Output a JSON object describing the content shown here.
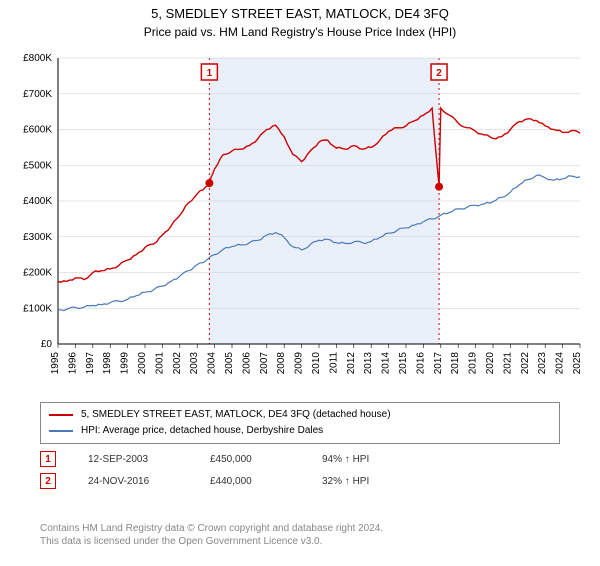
{
  "title": "5, SMEDLEY STREET EAST, MATLOCK, DE4 3FQ",
  "subtitle": "Price paid vs. HM Land Registry's House Price Index (HPI)",
  "chart": {
    "type": "line",
    "background_color": "#ffffff",
    "shaded_region_color": "#eaf0fa",
    "shaded_region_border_color": "#cc0000",
    "shaded_region_border_dash": "2,3",
    "grid_color": "#cccccc",
    "axis_color": "#000000",
    "x_years": [
      "1995",
      "1996",
      "1997",
      "1998",
      "1999",
      "2000",
      "2001",
      "2002",
      "2003",
      "2004",
      "2005",
      "2006",
      "2007",
      "2008",
      "2009",
      "2010",
      "2011",
      "2012",
      "2013",
      "2014",
      "2015",
      "2016",
      "2017",
      "2018",
      "2019",
      "2020",
      "2021",
      "2022",
      "2023",
      "2024",
      "2025"
    ],
    "ylim": [
      0,
      800000
    ],
    "ytick_step": 100000,
    "ytick_labels": [
      "£0",
      "£100K",
      "£200K",
      "£300K",
      "£400K",
      "£500K",
      "£600K",
      "£700K",
      "£800K"
    ],
    "shaded_x_start": 2003.7,
    "shaded_x_end": 2016.9,
    "series": [
      {
        "name": "price_paid",
        "color": "#cc0000",
        "width": 1.4,
        "points": [
          [
            1995,
            175000
          ],
          [
            1995.5,
            175000
          ],
          [
            1996,
            185000
          ],
          [
            1996.5,
            180000
          ],
          [
            1997,
            200000
          ],
          [
            1997.5,
            205000
          ],
          [
            1998,
            210000
          ],
          [
            1998.5,
            220000
          ],
          [
            1999,
            235000
          ],
          [
            1999.5,
            250000
          ],
          [
            2000,
            270000
          ],
          [
            2000.5,
            280000
          ],
          [
            2001,
            305000
          ],
          [
            2001.5,
            330000
          ],
          [
            2002,
            360000
          ],
          [
            2002.5,
            395000
          ],
          [
            2003,
            420000
          ],
          [
            2003.5,
            440000
          ],
          [
            2003.7,
            450000
          ],
          [
            2004,
            490000
          ],
          [
            2004.5,
            530000
          ],
          [
            2005,
            540000
          ],
          [
            2005.5,
            545000
          ],
          [
            2006,
            555000
          ],
          [
            2006.5,
            575000
          ],
          [
            2007,
            600000
          ],
          [
            2007.5,
            612000
          ],
          [
            2008,
            580000
          ],
          [
            2008.5,
            530000
          ],
          [
            2009,
            510000
          ],
          [
            2009.5,
            540000
          ],
          [
            2010,
            565000
          ],
          [
            2010.5,
            570000
          ],
          [
            2011,
            548000
          ],
          [
            2011.5,
            545000
          ],
          [
            2012,
            555000
          ],
          [
            2012.5,
            545000
          ],
          [
            2013,
            550000
          ],
          [
            2013.5,
            570000
          ],
          [
            2014,
            595000
          ],
          [
            2014.5,
            605000
          ],
          [
            2015,
            610000
          ],
          [
            2015.5,
            625000
          ],
          [
            2016,
            640000
          ],
          [
            2016.5,
            660000
          ],
          [
            2016.9,
            440000
          ],
          [
            2017,
            660000
          ],
          [
            2017.5,
            640000
          ],
          [
            2018,
            618000
          ],
          [
            2018.5,
            605000
          ],
          [
            2019,
            595000
          ],
          [
            2019.5,
            585000
          ],
          [
            2020,
            575000
          ],
          [
            2020.5,
            580000
          ],
          [
            2021,
            600000
          ],
          [
            2021.5,
            622000
          ],
          [
            2022,
            630000
          ],
          [
            2022.5,
            625000
          ],
          [
            2023,
            610000
          ],
          [
            2023.5,
            600000
          ],
          [
            2024,
            592000
          ],
          [
            2024.5,
            597000
          ],
          [
            2025,
            590000
          ]
        ]
      },
      {
        "name": "hpi",
        "color": "#4a7ab8",
        "width": 1.2,
        "points": [
          [
            1995,
            95000
          ],
          [
            1995.5,
            97000
          ],
          [
            1996,
            102000
          ],
          [
            1996.5,
            103000
          ],
          [
            1997,
            108000
          ],
          [
            1997.5,
            110000
          ],
          [
            1998,
            116000
          ],
          [
            1998.5,
            120000
          ],
          [
            1999,
            125000
          ],
          [
            1999.5,
            135000
          ],
          [
            2000,
            145000
          ],
          [
            2000.5,
            152000
          ],
          [
            2001,
            162000
          ],
          [
            2001.5,
            175000
          ],
          [
            2002,
            190000
          ],
          [
            2002.5,
            205000
          ],
          [
            2003,
            222000
          ],
          [
            2003.5,
            233000
          ],
          [
            2004,
            250000
          ],
          [
            2004.5,
            265000
          ],
          [
            2005,
            273000
          ],
          [
            2005.5,
            277000
          ],
          [
            2006,
            283000
          ],
          [
            2006.5,
            290000
          ],
          [
            2007,
            305000
          ],
          [
            2007.5,
            312000
          ],
          [
            2008,
            298000
          ],
          [
            2008.5,
            272000
          ],
          [
            2009,
            263000
          ],
          [
            2009.5,
            278000
          ],
          [
            2010,
            290000
          ],
          [
            2010.5,
            293000
          ],
          [
            2011,
            283000
          ],
          [
            2011.5,
            281000
          ],
          [
            2012,
            286000
          ],
          [
            2012.5,
            283000
          ],
          [
            2013,
            287000
          ],
          [
            2013.5,
            298000
          ],
          [
            2014,
            310000
          ],
          [
            2014.5,
            318000
          ],
          [
            2015,
            325000
          ],
          [
            2015.5,
            333000
          ],
          [
            2016,
            342000
          ],
          [
            2016.5,
            350000
          ],
          [
            2017,
            360000
          ],
          [
            2017.5,
            368000
          ],
          [
            2018,
            378000
          ],
          [
            2018.5,
            382000
          ],
          [
            2019,
            388000
          ],
          [
            2019.5,
            392000
          ],
          [
            2020,
            398000
          ],
          [
            2020.5,
            410000
          ],
          [
            2021,
            425000
          ],
          [
            2021.5,
            445000
          ],
          [
            2022,
            460000
          ],
          [
            2022.5,
            472000
          ],
          [
            2023,
            465000
          ],
          [
            2023.5,
            458000
          ],
          [
            2024,
            462000
          ],
          [
            2024.5,
            470000
          ],
          [
            2025,
            468000
          ]
        ]
      }
    ],
    "markers": [
      {
        "label": "1",
        "x": 2003.7,
        "y": 450000
      },
      {
        "label": "2",
        "x": 2016.9,
        "y": 440000
      }
    ],
    "marker_box_y_offset": -120,
    "marker_box_color": "#cc0000",
    "marker_box_bg": "#ffffff",
    "tick_fontsize": 10,
    "ylabel_fontsize": 10
  },
  "legend": {
    "items": [
      {
        "color": "#cc0000",
        "label": "5, SMEDLEY STREET EAST, MATLOCK, DE4 3FQ (detached house)"
      },
      {
        "color": "#4a7ab8",
        "label": "HPI: Average price, detached house, Derbyshire Dales"
      }
    ]
  },
  "sales": [
    {
      "marker": "1",
      "date": "12-SEP-2003",
      "price": "£450,000",
      "pct": "94% ↑ HPI"
    },
    {
      "marker": "2",
      "date": "24-NOV-2016",
      "price": "£440,000",
      "pct": "32% ↑ HPI"
    }
  ],
  "footer_line1": "Contains HM Land Registry data © Crown copyright and database right 2024.",
  "footer_line2": "This data is licensed under the Open Government Licence v3.0."
}
